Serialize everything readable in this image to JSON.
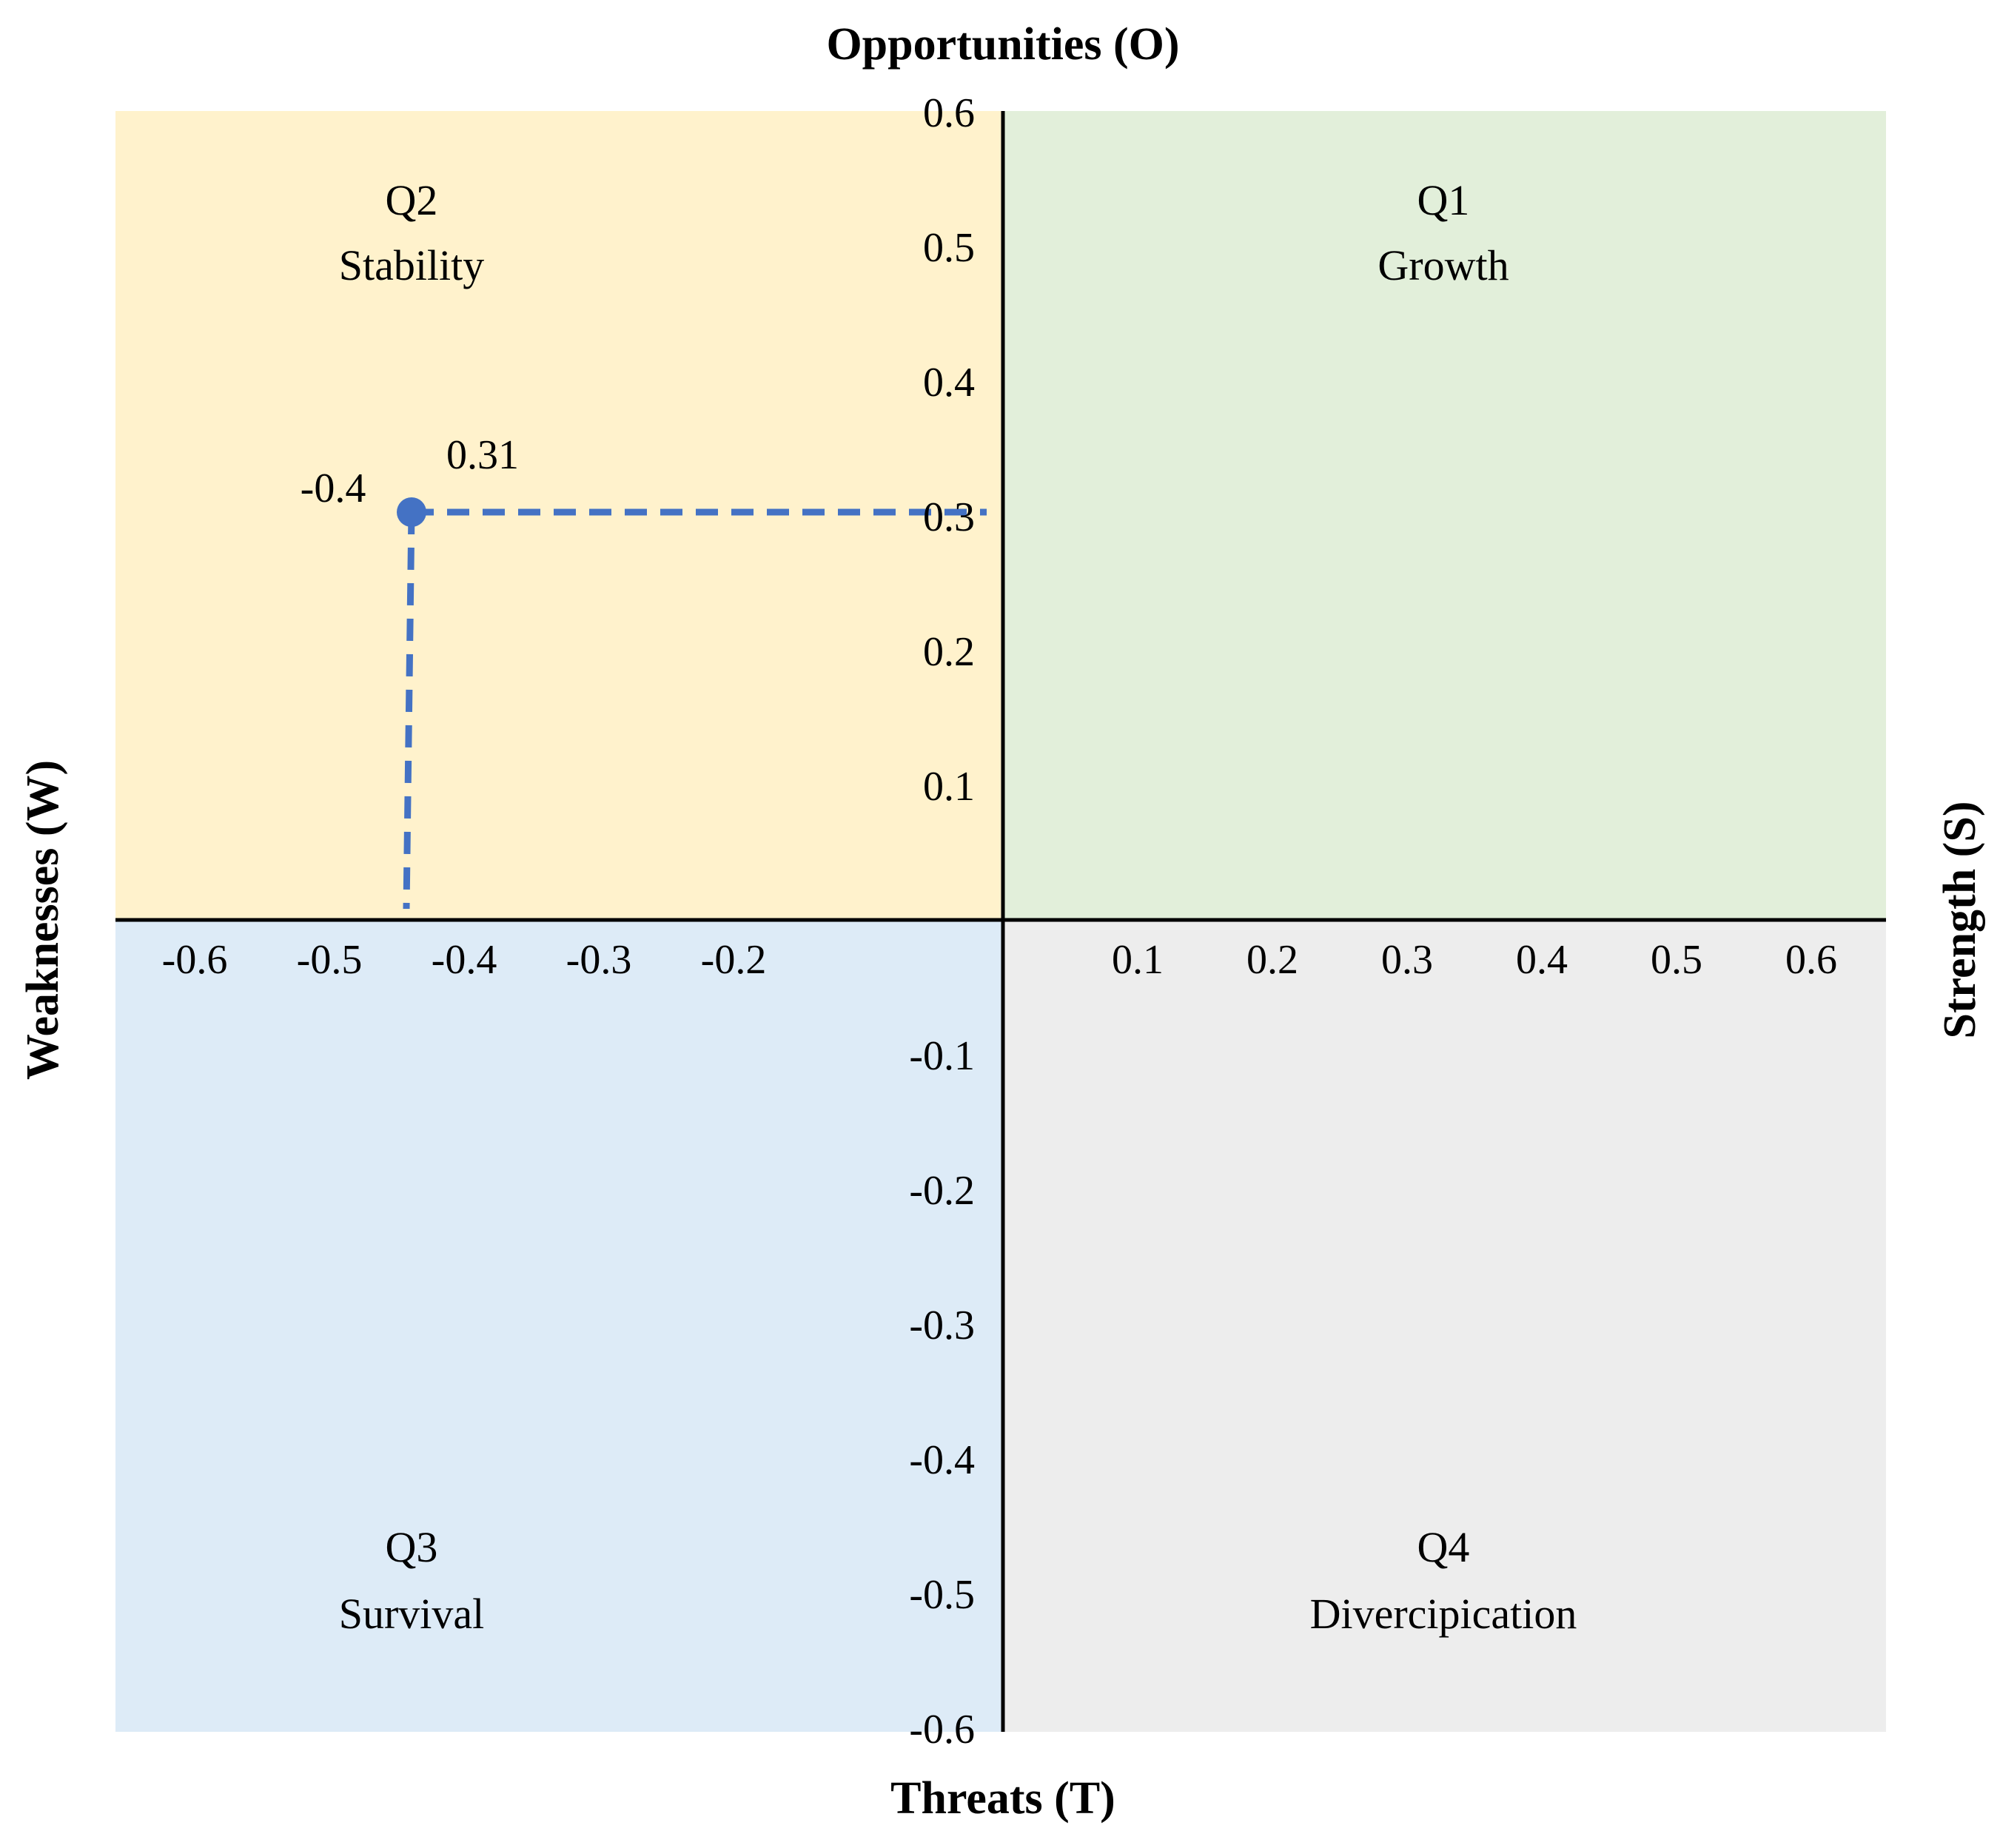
{
  "chart_data": {
    "type": "scatter",
    "title": "",
    "axis_titles": {
      "top": "Opportunities (O)",
      "bottom": "Threats (T)",
      "left": "Weaknesses (W)",
      "right": "Strength (S)"
    },
    "xlim": [
      -0.6,
      0.6
    ],
    "ylim": [
      -0.6,
      0.6
    ],
    "x_ticks": [
      {
        "value": -0.6,
        "label": "-0.6"
      },
      {
        "value": -0.5,
        "label": "-0.5"
      },
      {
        "value": -0.4,
        "label": "-0.4"
      },
      {
        "value": -0.3,
        "label": "-0.3"
      },
      {
        "value": -0.2,
        "label": "-0.2"
      },
      {
        "value": 0.1,
        "label": "0.1"
      },
      {
        "value": 0.2,
        "label": "0.2"
      },
      {
        "value": 0.3,
        "label": "0.3"
      },
      {
        "value": 0.4,
        "label": "0.4"
      },
      {
        "value": 0.5,
        "label": "0.5"
      },
      {
        "value": 0.6,
        "label": "0.6"
      }
    ],
    "y_ticks": [
      {
        "value": 0.6,
        "label": "0.6"
      },
      {
        "value": 0.5,
        "label": "0.5"
      },
      {
        "value": 0.4,
        "label": "0.4"
      },
      {
        "value": 0.3,
        "label": "0.3"
      },
      {
        "value": 0.2,
        "label": "0.2"
      },
      {
        "value": 0.1,
        "label": "0.1"
      },
      {
        "value": -0.1,
        "label": "-0.1"
      },
      {
        "value": -0.2,
        "label": "-0.2"
      },
      {
        "value": -0.3,
        "label": "-0.3"
      },
      {
        "value": -0.4,
        "label": "-0.4"
      },
      {
        "value": -0.5,
        "label": "-0.5"
      },
      {
        "value": -0.6,
        "label": "-0.6"
      }
    ],
    "quadrants": [
      {
        "id": "q1",
        "number": "Q1",
        "name": "Growth",
        "color": "#e2efda"
      },
      {
        "id": "q2",
        "number": "Q2",
        "name": "Stability",
        "color": "#fff2cc"
      },
      {
        "id": "q3",
        "number": "Q3",
        "name": "Survival",
        "color": "#ddebf7"
      },
      {
        "id": "q4",
        "number": "Q4",
        "name": "Divercipication",
        "color": "#ededed"
      }
    ],
    "point": {
      "x": -0.4,
      "y": 0.31,
      "x_label": "-0.4",
      "y_label": "0.31",
      "color": "#4472c4"
    },
    "grid": false,
    "legend": "none"
  }
}
